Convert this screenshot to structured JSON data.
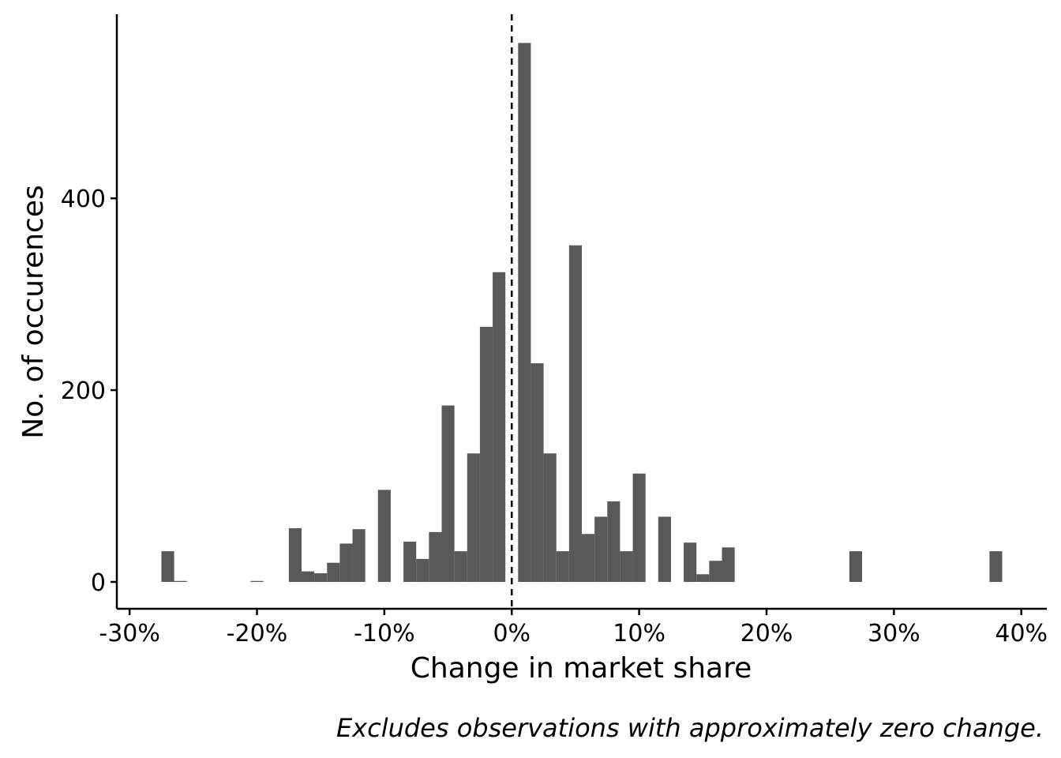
{
  "chart_data": {
    "type": "bar",
    "xlabel": "Change in market share",
    "ylabel": "No. of occurences",
    "caption": "Excludes observations with approximately zero change.",
    "xlim": [
      -0.31,
      0.42
    ],
    "ylim": [
      -28,
      592
    ],
    "x_ticks": [
      {
        "value": -0.3,
        "label": "-30%"
      },
      {
        "value": -0.2,
        "label": "-20%"
      },
      {
        "value": -0.1,
        "label": "-10%"
      },
      {
        "value": 0.0,
        "label": "0%"
      },
      {
        "value": 0.1,
        "label": "10%"
      },
      {
        "value": 0.2,
        "label": "20%"
      },
      {
        "value": 0.3,
        "label": "30%"
      },
      {
        "value": 0.4,
        "label": "40%"
      }
    ],
    "y_ticks": [
      {
        "value": 0,
        "label": "0"
      },
      {
        "value": 200,
        "label": "200"
      },
      {
        "value": 400,
        "label": "400"
      }
    ],
    "bin_width": 0.01,
    "bins": [
      {
        "x": -0.27,
        "count": 32
      },
      {
        "x": -0.26,
        "count": 1
      },
      {
        "x": -0.2,
        "count": 1
      },
      {
        "x": -0.17,
        "count": 56
      },
      {
        "x": -0.16,
        "count": 11
      },
      {
        "x": -0.15,
        "count": 9
      },
      {
        "x": -0.14,
        "count": 20
      },
      {
        "x": -0.13,
        "count": 40
      },
      {
        "x": -0.12,
        "count": 55
      },
      {
        "x": -0.1,
        "count": 96
      },
      {
        "x": -0.08,
        "count": 42
      },
      {
        "x": -0.07,
        "count": 24
      },
      {
        "x": -0.06,
        "count": 52
      },
      {
        "x": -0.05,
        "count": 184
      },
      {
        "x": -0.04,
        "count": 32
      },
      {
        "x": -0.03,
        "count": 134
      },
      {
        "x": -0.02,
        "count": 266
      },
      {
        "x": -0.01,
        "count": 323
      },
      {
        "x": 0.01,
        "count": 562
      },
      {
        "x": 0.02,
        "count": 228
      },
      {
        "x": 0.03,
        "count": 134
      },
      {
        "x": 0.04,
        "count": 32
      },
      {
        "x": 0.05,
        "count": 351
      },
      {
        "x": 0.06,
        "count": 50
      },
      {
        "x": 0.07,
        "count": 68
      },
      {
        "x": 0.08,
        "count": 84
      },
      {
        "x": 0.09,
        "count": 32
      },
      {
        "x": 0.1,
        "count": 113
      },
      {
        "x": 0.12,
        "count": 68
      },
      {
        "x": 0.14,
        "count": 41
      },
      {
        "x": 0.15,
        "count": 8
      },
      {
        "x": 0.16,
        "count": 22
      },
      {
        "x": 0.17,
        "count": 36
      },
      {
        "x": 0.27,
        "count": 32
      },
      {
        "x": 0.38,
        "count": 32
      }
    ],
    "reference_line": {
      "x": 0,
      "style": "dashed"
    },
    "bar_color": "#595959",
    "grid": false
  }
}
